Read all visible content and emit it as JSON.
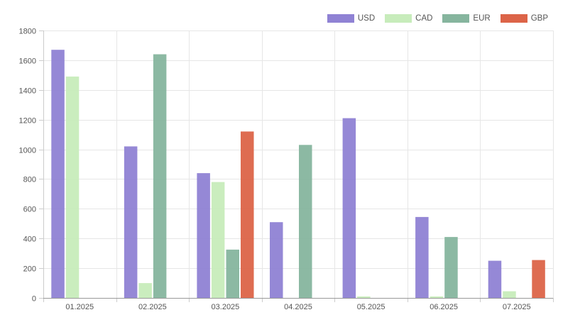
{
  "chart_data": {
    "type": "bar",
    "title": "",
    "xlabel": "",
    "ylabel": "",
    "ylim": [
      0,
      1800
    ],
    "yticks": [
      0,
      200,
      400,
      600,
      800,
      1000,
      1200,
      1400,
      1600,
      1800
    ],
    "grid": true,
    "legend_position": "top-right",
    "categories": [
      "01.2025",
      "02.2025",
      "03.2025",
      "04.2025",
      "05.2025",
      "06.2025",
      "07.2025"
    ],
    "series": [
      {
        "name": "USD",
        "color": "#8f82d4",
        "values": [
          1670,
          1020,
          840,
          510,
          1210,
          545,
          250
        ]
      },
      {
        "name": "CAD",
        "color": "#c7ecbb",
        "values": [
          1490,
          100,
          780,
          0,
          10,
          10,
          45
        ]
      },
      {
        "name": "EUR",
        "color": "#86b59e",
        "values": [
          0,
          1640,
          325,
          1030,
          0,
          410,
          0
        ]
      },
      {
        "name": "GBP",
        "color": "#dc6448",
        "values": [
          0,
          0,
          1120,
          0,
          0,
          0,
          255
        ]
      }
    ]
  }
}
